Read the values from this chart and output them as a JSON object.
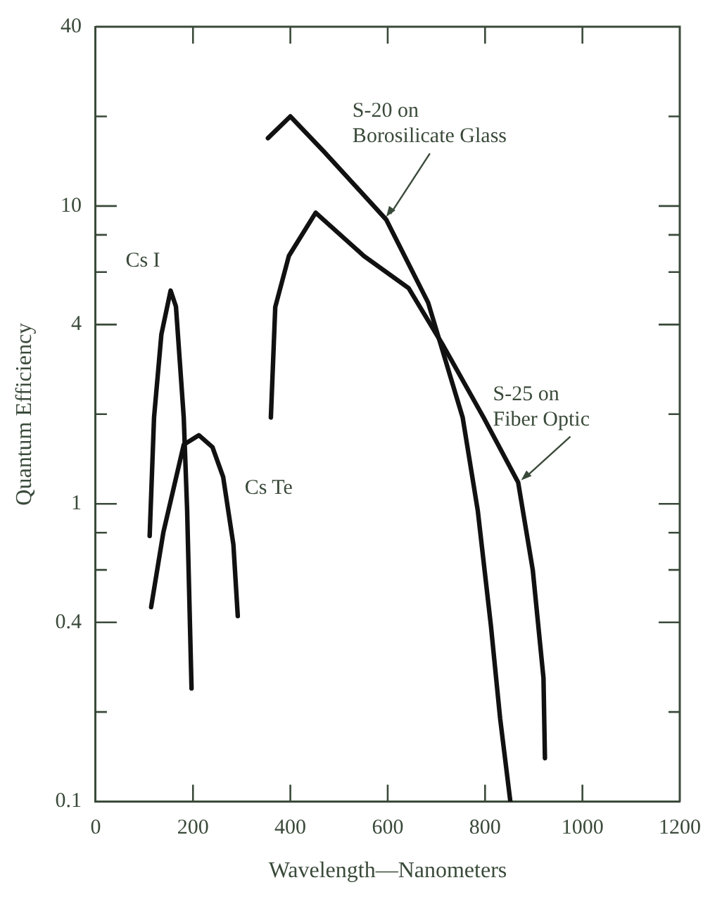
{
  "chart_data": {
    "type": "line",
    "xlabel": "Wavelength—Nanometers",
    "ylabel": "Quantum Efficiency",
    "log": "y",
    "grid": false,
    "legend": false,
    "marker": "none",
    "line_style": "solid",
    "xlim": [
      0,
      1200
    ],
    "xticks": [
      0,
      200,
      400,
      600,
      800,
      1000,
      1200
    ],
    "ylim": [
      0.1,
      40
    ],
    "yticks": [
      0.1,
      {
        "value": 0.2,
        "label": null
      },
      0.4,
      {
        "value": 0.6,
        "label": null
      },
      {
        "value": 0.8,
        "label": null
      },
      1,
      {
        "value": 2,
        "label": null
      },
      4,
      {
        "value": 6,
        "label": null
      },
      {
        "value": 8,
        "label": null
      },
      10,
      {
        "value": 20,
        "label": null
      },
      40
    ],
    "series": [
      {
        "color": "#111111",
        "x": [
          111,
          120,
          135,
          154,
          165,
          181,
          188,
          197
        ],
        "values": [
          0.78,
          1.95,
          3.7,
          5.2,
          4.6,
          1.95,
          0.95,
          0.24
        ]
      },
      {
        "color": "#111111",
        "x": [
          114,
          139,
          181,
          212,
          240,
          262,
          283,
          292
        ],
        "values": [
          0.45,
          0.8,
          1.58,
          1.7,
          1.55,
          1.23,
          0.73,
          0.42
        ]
      },
      {
        "color": "#111111",
        "x": [
          354,
          400,
          468,
          597,
          683,
          754,
          785,
          812,
          831,
          852
        ],
        "values": [
          16.9,
          20,
          15.3,
          9.0,
          4.74,
          1.95,
          0.95,
          0.39,
          0.19,
          0.1
        ]
      },
      {
        "color": "#111111",
        "x": [
          360,
          369,
          397,
          452,
          551,
          643,
          714,
          797,
          868,
          898,
          920,
          923
        ],
        "values": [
          1.95,
          4.58,
          6.8,
          9.5,
          6.8,
          5.3,
          3.4,
          1.95,
          1.18,
          0.6,
          0.26,
          0.14
        ]
      }
    ],
    "annotations": [
      {
        "text": "Cs I",
        "x": 154,
        "y": 5.2
      },
      {
        "text": "Cs Te",
        "x": 283,
        "y": 0.73
      },
      {
        "text": "S-20 on\nBorosilicate Glass",
        "x": 597,
        "y": 9.2
      },
      {
        "text": "S-25 on\nFiber Optic",
        "x": 874,
        "y": 1.2
      }
    ]
  }
}
